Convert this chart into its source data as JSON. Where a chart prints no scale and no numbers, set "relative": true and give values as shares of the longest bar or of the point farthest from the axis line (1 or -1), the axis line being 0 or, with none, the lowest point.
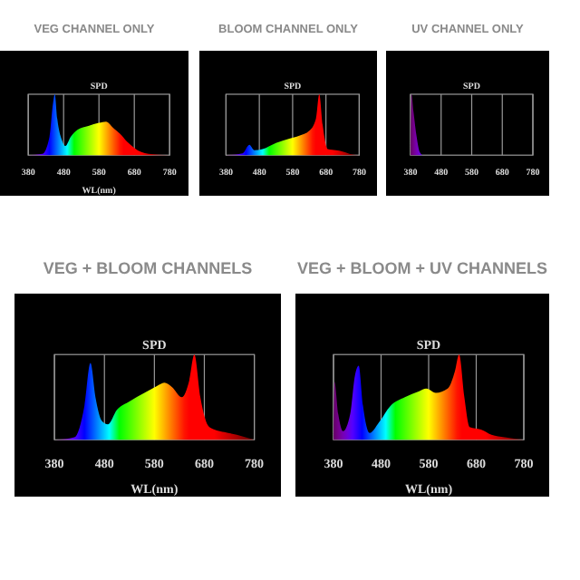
{
  "chart_data": [
    {
      "type": "area",
      "title": "VEG CHANNEL ONLY",
      "subtitle": "SPD",
      "xlabel": "WL(nm)",
      "relative": true,
      "xlim": [
        380,
        780
      ],
      "xticks": [
        380,
        480,
        580,
        680,
        780
      ],
      "grid": "x",
      "x": [
        380,
        420,
        440,
        450,
        455,
        462,
        475,
        485,
        500,
        520,
        550,
        580,
        600,
        620,
        640,
        660,
        680,
        700,
        720,
        780
      ],
      "values": [
        0,
        0.02,
        0.3,
        0.85,
        1,
        0.6,
        0.25,
        0.15,
        0.3,
        0.42,
        0.48,
        0.53,
        0.55,
        0.45,
        0.35,
        0.22,
        0.12,
        0.05,
        0.02,
        0
      ]
    },
    {
      "type": "area",
      "title": "BLOOM CHANNEL ONLY",
      "subtitle": "SPD",
      "relative": true,
      "xlim": [
        380,
        780
      ],
      "xticks": [
        380,
        480,
        580,
        680,
        780
      ],
      "grid": "x",
      "x": [
        380,
        430,
        450,
        465,
        490,
        530,
        570,
        600,
        630,
        650,
        660,
        670,
        685,
        710,
        730,
        760,
        780
      ],
      "values": [
        0,
        0.03,
        0.17,
        0.08,
        0.1,
        0.2,
        0.27,
        0.32,
        0.4,
        0.6,
        1,
        0.5,
        0.1,
        0.08,
        0.06,
        0.01,
        0
      ]
    },
    {
      "type": "area",
      "title": "UV CHANNEL ONLY",
      "subtitle": "SPD",
      "relative": true,
      "xlim": [
        380,
        780
      ],
      "xticks": [
        380,
        480,
        580,
        680,
        780
      ],
      "grid": "x",
      "x": [
        380,
        383,
        390,
        400,
        410,
        420,
        780
      ],
      "values": [
        0,
        1,
        0.7,
        0.3,
        0.05,
        0,
        0
      ]
    },
    {
      "type": "area",
      "title": "VEG + BLOOM CHANNELS",
      "subtitle": "SPD",
      "xlabel": "WL(nm)",
      "relative": true,
      "xlim": [
        380,
        780
      ],
      "xticks": [
        380,
        480,
        580,
        680,
        780
      ],
      "grid": "x",
      "x": [
        380,
        420,
        440,
        452,
        462,
        475,
        487,
        505,
        530,
        560,
        585,
        600,
        615,
        635,
        650,
        660,
        672,
        690,
        720,
        745,
        780
      ],
      "values": [
        0,
        0.03,
        0.4,
        0.9,
        0.5,
        0.22,
        0.18,
        0.35,
        0.45,
        0.55,
        0.63,
        0.67,
        0.62,
        0.5,
        0.7,
        1,
        0.5,
        0.15,
        0.09,
        0.06,
        0
      ]
    },
    {
      "type": "area",
      "title": "VEG + BLOOM + UV CHANNELS",
      "subtitle": "SPD",
      "xlabel": "WL(nm)",
      "relative": true,
      "xlim": [
        380,
        780
      ],
      "xticks": [
        380,
        480,
        580,
        680,
        780
      ],
      "grid": "x",
      "x": [
        380,
        382,
        390,
        400,
        415,
        425,
        433,
        442,
        456,
        475,
        500,
        530,
        560,
        575,
        595,
        620,
        635,
        644,
        655,
        666,
        690,
        712,
        740,
        780
      ],
      "values": [
        0,
        0.68,
        0.3,
        0.1,
        0.3,
        0.75,
        0.87,
        0.4,
        0.08,
        0.2,
        0.4,
        0.5,
        0.57,
        0.6,
        0.55,
        0.6,
        0.8,
        1,
        0.5,
        0.15,
        0.12,
        0.06,
        0.03,
        0
      ]
    }
  ]
}
